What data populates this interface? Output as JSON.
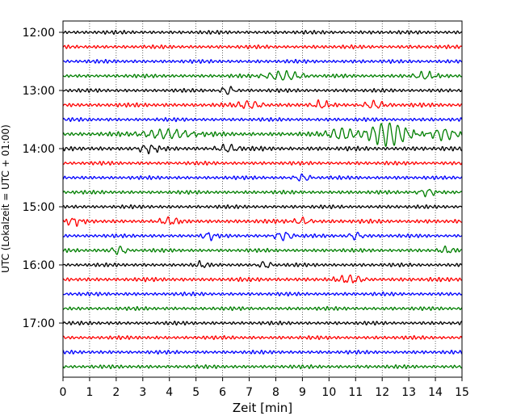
{
  "chart_data": {
    "type": "line",
    "title": "",
    "xlabel": "Zeit  [min]",
    "ylabel": "UTC (Lokalzeit = UTC + 01:00)",
    "xlim": [
      0,
      15
    ],
    "x_ticks": [
      0,
      1,
      2,
      3,
      4,
      5,
      6,
      7,
      8,
      9,
      10,
      11,
      12,
      13,
      14,
      15
    ],
    "x_tick_labels": [
      "0",
      "1",
      "2",
      "3",
      "4",
      "5",
      "6",
      "7",
      "8",
      "9",
      "10",
      "11",
      "12",
      "13",
      "14",
      "15"
    ],
    "y_ticks": [
      "12:00",
      "13:00",
      "14:00",
      "15:00",
      "16:00",
      "17:00"
    ],
    "grid": "vertical dotted",
    "trace_interval_minutes": 15,
    "trace_colors": [
      "#000000",
      "#ff0000",
      "#0000ff",
      "#007f00"
    ],
    "series": [
      {
        "start": "12:00",
        "color": "#000000",
        "amplitude": 0.25
      },
      {
        "start": "12:15",
        "color": "#ff0000",
        "amplitude": 0.25
      },
      {
        "start": "12:30",
        "color": "#0000ff",
        "amplitude": 0.25
      },
      {
        "start": "12:45",
        "color": "#007f00",
        "amplitude": 0.25,
        "events": [
          {
            "t": 8.3,
            "amp": 0.55,
            "dur": 1.4
          },
          {
            "t": 13.6,
            "amp": 0.45,
            "dur": 0.8
          }
        ]
      },
      {
        "start": "13:00",
        "color": "#000000",
        "amplitude": 0.25,
        "events": [
          {
            "t": 6.2,
            "amp": 0.5,
            "dur": 0.5
          }
        ]
      },
      {
        "start": "13:15",
        "color": "#ff0000",
        "amplitude": 0.28,
        "events": [
          {
            "t": 7.0,
            "amp": 0.45,
            "dur": 1.0
          },
          {
            "t": 9.7,
            "amp": 0.45,
            "dur": 0.6
          },
          {
            "t": 11.7,
            "amp": 0.45,
            "dur": 0.8
          }
        ]
      },
      {
        "start": "13:30",
        "color": "#0000ff",
        "amplitude": 0.25
      },
      {
        "start": "13:45",
        "color": "#007f00",
        "amplitude": 0.3,
        "events": [
          {
            "t": 3.9,
            "amp": 0.55,
            "dur": 2.0
          },
          {
            "t": 10.5,
            "amp": 0.7,
            "dur": 1.2
          },
          {
            "t": 12.2,
            "amp": 1.45,
            "dur": 1.6
          },
          {
            "t": 14.3,
            "amp": 0.7,
            "dur": 1.0
          }
        ]
      },
      {
        "start": "14:00",
        "color": "#000000",
        "amplitude": 0.3,
        "events": [
          {
            "t": 3.2,
            "amp": 0.45,
            "dur": 0.8
          },
          {
            "t": 6.2,
            "amp": 0.45,
            "dur": 0.8
          }
        ]
      },
      {
        "start": "14:15",
        "color": "#ff0000",
        "amplitude": 0.25
      },
      {
        "start": "14:30",
        "color": "#0000ff",
        "amplitude": 0.25,
        "events": [
          {
            "t": 9.0,
            "amp": 0.4,
            "dur": 0.6
          }
        ]
      },
      {
        "start": "14:45",
        "color": "#007f00",
        "amplitude": 0.25,
        "events": [
          {
            "t": 13.7,
            "amp": 0.45,
            "dur": 0.6
          }
        ]
      },
      {
        "start": "15:00",
        "color": "#000000",
        "amplitude": 0.25
      },
      {
        "start": "15:15",
        "color": "#ff0000",
        "amplitude": 0.28,
        "events": [
          {
            "t": 0.4,
            "amp": 0.45,
            "dur": 0.6
          },
          {
            "t": 4.0,
            "amp": 0.4,
            "dur": 0.8
          },
          {
            "t": 9.0,
            "amp": 0.4,
            "dur": 0.6
          }
        ]
      },
      {
        "start": "15:30",
        "color": "#0000ff",
        "amplitude": 0.25,
        "events": [
          {
            "t": 5.5,
            "amp": 0.45,
            "dur": 0.5
          },
          {
            "t": 8.3,
            "amp": 0.5,
            "dur": 0.7
          },
          {
            "t": 11.0,
            "amp": 0.45,
            "dur": 0.5
          }
        ]
      },
      {
        "start": "15:45",
        "color": "#007f00",
        "amplitude": 0.25,
        "events": [
          {
            "t": 2.1,
            "amp": 0.5,
            "dur": 0.6
          },
          {
            "t": 14.4,
            "amp": 0.4,
            "dur": 0.5
          }
        ]
      },
      {
        "start": "16:00",
        "color": "#000000",
        "amplitude": 0.25,
        "events": [
          {
            "t": 5.2,
            "amp": 0.4,
            "dur": 0.4
          },
          {
            "t": 7.6,
            "amp": 0.4,
            "dur": 0.5
          }
        ]
      },
      {
        "start": "16:15",
        "color": "#ff0000",
        "amplitude": 0.28,
        "events": [
          {
            "t": 10.8,
            "amp": 0.45,
            "dur": 1.0
          }
        ]
      },
      {
        "start": "16:30",
        "color": "#0000ff",
        "amplitude": 0.25
      },
      {
        "start": "16:45",
        "color": "#007f00",
        "amplitude": 0.25
      },
      {
        "start": "17:00",
        "color": "#000000",
        "amplitude": 0.25
      },
      {
        "start": "17:15",
        "color": "#ff0000",
        "amplitude": 0.25
      },
      {
        "start": "17:30",
        "color": "#0000ff",
        "amplitude": 0.25
      },
      {
        "start": "17:45",
        "color": "#007f00",
        "amplitude": 0.25
      }
    ]
  }
}
